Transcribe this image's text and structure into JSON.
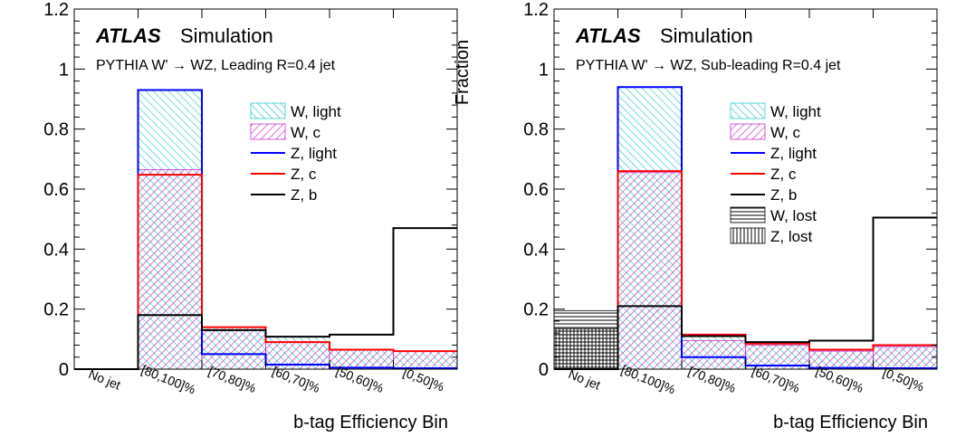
{
  "chart_data": [
    {
      "type": "histogram",
      "y_label": "Fraction",
      "x_label": "b-tag Efficiency Bin",
      "ylim": [
        0,
        1.2
      ],
      "y_ticks": [
        "0",
        "0.2",
        "0.4",
        "0.6",
        "0.8",
        "1",
        "1.2"
      ],
      "categories": [
        "No jet",
        "[80,100]%",
        "[70,80]%",
        "[60,70]%",
        "[50,60]%",
        "[0,50]%"
      ],
      "atlas_label": "ATLAS",
      "atlas_sub": "Simulation",
      "subtitle": "PYTHIA W' → WZ, Leading R=0.4 jet",
      "series": [
        {
          "name": "W, light",
          "kind": "fill",
          "pattern": "cyan-hatch",
          "color": "#33cccc",
          "values": [
            0,
            0.93,
            0.14,
            0.11,
            0.065,
            0.06
          ],
          "hidden": true
        },
        {
          "name": "W, c",
          "kind": "fill",
          "pattern": "magenta-hatch",
          "color": "#cc33cc",
          "values": [
            0,
            0.665,
            0.14,
            0.09,
            0.065,
            0.06
          ]
        },
        {
          "name": "Z, light",
          "kind": "line",
          "color": "#0000ff",
          "values": [
            0,
            0.93,
            0.05,
            0.015,
            0.005,
            0.003
          ]
        },
        {
          "name": "Z, c",
          "kind": "line",
          "color": "#ff0000",
          "values": [
            0,
            0.648,
            0.14,
            0.09,
            0.065,
            0.06
          ]
        },
        {
          "name": "Z, b",
          "kind": "line",
          "color": "#000000",
          "values": [
            0,
            0.18,
            0.13,
            0.108,
            0.115,
            0.47
          ]
        }
      ],
      "legend": [
        "W, light",
        "W, c",
        "Z, light",
        "Z, c",
        "Z, b"
      ]
    },
    {
      "type": "histogram",
      "y_label": "Fraction",
      "x_label": "b-tag Efficiency Bin",
      "ylim": [
        0,
        1.2
      ],
      "y_ticks": [
        "0",
        "0.2",
        "0.4",
        "0.6",
        "0.8",
        "1",
        "1.2"
      ],
      "categories": [
        "No jet",
        "[80,100]%",
        "[70,80]%",
        "[60,70]%",
        "[50,60]%",
        "[0,50]%"
      ],
      "atlas_label": "ATLAS",
      "atlas_sub": "Simulation",
      "subtitle": "PYTHIA W' → WZ, Sub-leading R=0.4 jet",
      "series": [
        {
          "name": "W, light",
          "kind": "fill",
          "pattern": "cyan-hatch",
          "color": "#33cccc",
          "values": [
            0,
            0.94,
            0.11,
            0.09,
            0.065,
            0.08
          ]
        },
        {
          "name": "W, c",
          "kind": "fill",
          "pattern": "magenta-hatch",
          "color": "#cc33cc",
          "values": [
            0,
            0.655,
            0.095,
            0.08,
            0.06,
            0.075
          ]
        },
        {
          "name": "Z, light",
          "kind": "line",
          "color": "#0000ff",
          "values": [
            0,
            0.94,
            0.04,
            0.012,
            0.004,
            0.003
          ]
        },
        {
          "name": "Z, c",
          "kind": "line",
          "color": "#ff0000",
          "values": [
            0,
            0.66,
            0.115,
            0.085,
            0.065,
            0.08
          ]
        },
        {
          "name": "Z, b",
          "kind": "line",
          "color": "#000000",
          "values": [
            0,
            0.21,
            0.11,
            0.09,
            0.095,
            0.505
          ]
        },
        {
          "name": "W, lost",
          "kind": "fill",
          "pattern": "horizontal-lines",
          "color": "#000000",
          "values": [
            0.195,
            0,
            0,
            0,
            0,
            0
          ]
        },
        {
          "name": "Z, lost",
          "kind": "fill",
          "pattern": "vertical-lines",
          "color": "#000000",
          "values": [
            0.135,
            0,
            0,
            0,
            0,
            0
          ]
        }
      ],
      "legend": [
        "W, light",
        "W, c",
        "Z, light",
        "Z, c",
        "Z, b",
        "W, lost",
        "Z, lost"
      ]
    }
  ]
}
